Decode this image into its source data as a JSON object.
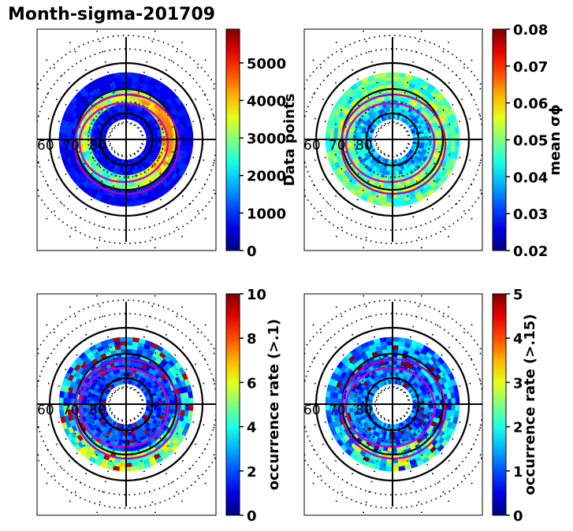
{
  "title": "Month-sigma-201709",
  "chart_data": [
    {
      "type": "heatmap",
      "projection": "polar",
      "quantity": "data_points",
      "colorbar_label": "Data points",
      "colorbar_range": [
        0,
        6000
      ],
      "colorbar_ticks": [
        "0",
        "1000",
        "2000",
        "3000",
        "4000",
        "5000"
      ],
      "colorbar_tick_values": [
        0,
        1000,
        2000,
        3000,
        4000,
        5000
      ],
      "lat_labels": [
        "60",
        "70",
        "80"
      ],
      "grid_latitudes": [
        60,
        70,
        80
      ],
      "colorbar_max": 5900
    },
    {
      "type": "heatmap",
      "projection": "polar",
      "quantity": "mean_sigma_phi",
      "colorbar_label": "mean σϕ",
      "colorbar_range": [
        0.02,
        0.08
      ],
      "colorbar_ticks": [
        "0.02",
        "0.03",
        "0.04",
        "0.05",
        "0.06",
        "0.07",
        "0.08"
      ],
      "colorbar_tick_values": [
        0.02,
        0.03,
        0.04,
        0.05,
        0.06,
        0.07,
        0.08
      ],
      "lat_labels": [
        "60",
        "70",
        "80"
      ],
      "grid_latitudes": [
        60,
        70,
        80
      ],
      "colorbar_max": 0.08
    },
    {
      "type": "heatmap",
      "projection": "polar",
      "quantity": "occurrence_rate_gt_0.1",
      "colorbar_label": "occurrence rate (>.1)",
      "colorbar_range": [
        0,
        10
      ],
      "colorbar_ticks": [
        "0",
        "2",
        "4",
        "6",
        "8",
        "10"
      ],
      "colorbar_tick_values": [
        0,
        2,
        4,
        6,
        8,
        10
      ],
      "lat_labels": [
        "60",
        "70",
        "80"
      ],
      "grid_latitudes": [
        60,
        70,
        80
      ],
      "colorbar_max": 10
    },
    {
      "type": "heatmap",
      "projection": "polar",
      "quantity": "occurrence_rate_gt_0.15",
      "colorbar_label": "occurrence rate (>.15)",
      "colorbar_range": [
        0,
        5
      ],
      "colorbar_ticks": [
        "0",
        "1",
        "2",
        "3",
        "4",
        "5"
      ],
      "colorbar_tick_values": [
        0,
        1,
        2,
        3,
        4,
        5
      ],
      "lat_labels": [
        "60",
        "70",
        "80"
      ],
      "grid_latitudes": [
        60,
        70,
        80
      ],
      "colorbar_max": 5
    }
  ]
}
